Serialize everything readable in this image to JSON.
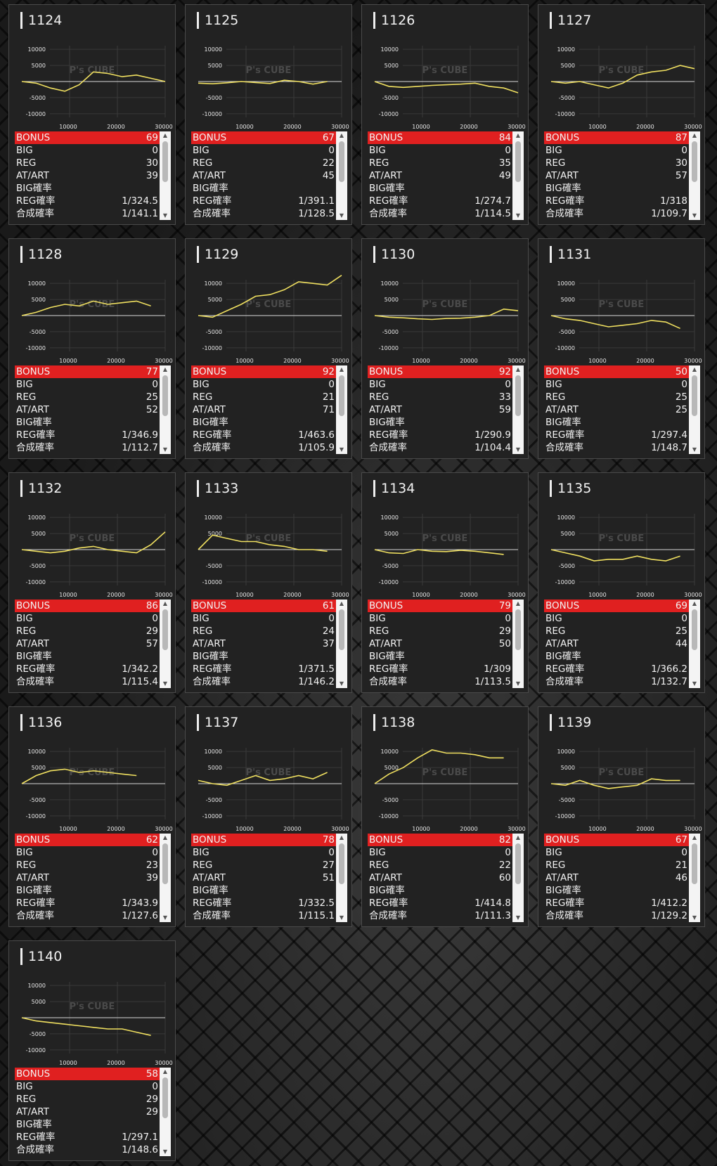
{
  "labels": {
    "bonus": "BONUS",
    "big": "BIG",
    "reg": "REG",
    "at": "AT/ART",
    "big_rate": "BIG確率",
    "reg_rate": "REG確率",
    "total_rate": "合成確率"
  },
  "watermark": "P's CUBE",
  "icons": {
    "scroll_up": "triangle-up-icon",
    "scroll_down": "triangle-down-icon"
  },
  "colors": {
    "line": "#f0e060",
    "bonus_bg": "#e02020"
  },
  "machines": [
    {
      "id": "1124",
      "bonus": "69",
      "big": "0",
      "reg": "30",
      "at": "39",
      "big_rate": "",
      "reg_rate": "1/324.5",
      "total_rate": "1/141.1"
    },
    {
      "id": "1125",
      "bonus": "67",
      "big": "0",
      "reg": "22",
      "at": "45",
      "big_rate": "",
      "reg_rate": "1/391.1",
      "total_rate": "1/128.5"
    },
    {
      "id": "1126",
      "bonus": "84",
      "big": "0",
      "reg": "35",
      "at": "49",
      "big_rate": "",
      "reg_rate": "1/274.7",
      "total_rate": "1/114.5"
    },
    {
      "id": "1127",
      "bonus": "87",
      "big": "0",
      "reg": "30",
      "at": "57",
      "big_rate": "",
      "reg_rate": "1/318",
      "total_rate": "1/109.7"
    },
    {
      "id": "1128",
      "bonus": "77",
      "big": "0",
      "reg": "25",
      "at": "52",
      "big_rate": "",
      "reg_rate": "1/346.9",
      "total_rate": "1/112.7"
    },
    {
      "id": "1129",
      "bonus": "92",
      "big": "0",
      "reg": "21",
      "at": "71",
      "big_rate": "",
      "reg_rate": "1/463.6",
      "total_rate": "1/105.9"
    },
    {
      "id": "1130",
      "bonus": "92",
      "big": "0",
      "reg": "33",
      "at": "59",
      "big_rate": "",
      "reg_rate": "1/290.9",
      "total_rate": "1/104.4"
    },
    {
      "id": "1131",
      "bonus": "50",
      "big": "0",
      "reg": "25",
      "at": "25",
      "big_rate": "",
      "reg_rate": "1/297.4",
      "total_rate": "1/148.7"
    },
    {
      "id": "1132",
      "bonus": "86",
      "big": "0",
      "reg": "29",
      "at": "57",
      "big_rate": "",
      "reg_rate": "1/342.2",
      "total_rate": "1/115.4"
    },
    {
      "id": "1133",
      "bonus": "61",
      "big": "0",
      "reg": "24",
      "at": "37",
      "big_rate": "",
      "reg_rate": "1/371.5",
      "total_rate": "1/146.2"
    },
    {
      "id": "1134",
      "bonus": "79",
      "big": "0",
      "reg": "29",
      "at": "50",
      "big_rate": "",
      "reg_rate": "1/309",
      "total_rate": "1/113.5"
    },
    {
      "id": "1135",
      "bonus": "69",
      "big": "0",
      "reg": "25",
      "at": "44",
      "big_rate": "",
      "reg_rate": "1/366.2",
      "total_rate": "1/132.7"
    },
    {
      "id": "1136",
      "bonus": "62",
      "big": "0",
      "reg": "23",
      "at": "39",
      "big_rate": "",
      "reg_rate": "1/343.9",
      "total_rate": "1/127.6"
    },
    {
      "id": "1137",
      "bonus": "78",
      "big": "0",
      "reg": "27",
      "at": "51",
      "big_rate": "",
      "reg_rate": "1/332.5",
      "total_rate": "1/115.1"
    },
    {
      "id": "1138",
      "bonus": "82",
      "big": "0",
      "reg": "22",
      "at": "60",
      "big_rate": "",
      "reg_rate": "1/414.8",
      "total_rate": "1/111.3"
    },
    {
      "id": "1139",
      "bonus": "67",
      "big": "0",
      "reg": "21",
      "at": "46",
      "big_rate": "",
      "reg_rate": "1/412.2",
      "total_rate": "1/129.2"
    },
    {
      "id": "1140",
      "bonus": "58",
      "big": "0",
      "reg": "29",
      "at": "29",
      "big_rate": "",
      "reg_rate": "1/297.1",
      "total_rate": "1/148.6"
    }
  ],
  "chart_data": [
    {
      "type": "line",
      "title": "1124",
      "x_ticks": [
        "10000",
        "20000",
        "30000"
      ],
      "y_ticks": [
        "10000",
        "5000",
        "-5000",
        "-10000"
      ],
      "xlim": [
        0,
        30000
      ],
      "ylim": [
        -12000,
        12000
      ],
      "x": [
        0,
        3000,
        6000,
        9000,
        12000,
        15000,
        18000,
        21000,
        24000,
        27000,
        30000
      ],
      "values": [
        0,
        -500,
        -2000,
        -3000,
        -1000,
        3000,
        2500,
        1500,
        2000,
        1000,
        0
      ]
    },
    {
      "type": "line",
      "title": "1125",
      "x_ticks": [
        "10000",
        "20000",
        "30000"
      ],
      "y_ticks": [
        "10000",
        "5000",
        "-5000",
        "-10000"
      ],
      "xlim": [
        0,
        30000
      ],
      "ylim": [
        -12000,
        12000
      ],
      "x": [
        0,
        3000,
        6000,
        9000,
        12000,
        15000,
        18000,
        21000,
        24000,
        27000
      ],
      "values": [
        -500,
        -700,
        -400,
        0,
        -300,
        -600,
        400,
        0,
        -800,
        0
      ]
    },
    {
      "type": "line",
      "title": "1126",
      "x_ticks": [
        "10000",
        "20000",
        "30000"
      ],
      "y_ticks": [
        "10000",
        "5000",
        "-5000",
        "-10000"
      ],
      "xlim": [
        0,
        30000
      ],
      "ylim": [
        -12000,
        12000
      ],
      "x": [
        0,
        3000,
        6000,
        9000,
        12000,
        15000,
        18000,
        21000,
        24000,
        27000,
        30000
      ],
      "values": [
        0,
        -1500,
        -1800,
        -1500,
        -1200,
        -1000,
        -800,
        -500,
        -1500,
        -2000,
        -3500
      ]
    },
    {
      "type": "line",
      "title": "1127",
      "x_ticks": [
        "10000",
        "20000",
        "30000"
      ],
      "y_ticks": [
        "10000",
        "5000",
        "-5000",
        "-10000"
      ],
      "xlim": [
        0,
        30000
      ],
      "ylim": [
        -12000,
        12000
      ],
      "x": [
        0,
        3000,
        6000,
        9000,
        12000,
        15000,
        18000,
        21000,
        24000,
        27000,
        30000
      ],
      "values": [
        0,
        -500,
        0,
        -1000,
        -2000,
        -500,
        2000,
        3000,
        3500,
        5000,
        4000
      ]
    },
    {
      "type": "line",
      "title": "1128",
      "x_ticks": [
        "10000",
        "20000",
        "30000"
      ],
      "y_ticks": [
        "10000",
        "5000",
        "-5000",
        "-10000"
      ],
      "xlim": [
        0,
        30000
      ],
      "ylim": [
        -12000,
        12000
      ],
      "x": [
        0,
        3000,
        6000,
        9000,
        12000,
        15000,
        18000,
        21000,
        24000,
        27000
      ],
      "values": [
        0,
        1000,
        2500,
        3500,
        3000,
        4500,
        3500,
        4000,
        4500,
        3000
      ]
    },
    {
      "type": "line",
      "title": "1129",
      "x_ticks": [
        "10000",
        "20000",
        "30000"
      ],
      "y_ticks": [
        "10000",
        "5000",
        "-5000",
        "-10000"
      ],
      "xlim": [
        0,
        30000
      ],
      "ylim": [
        -12000,
        12000
      ],
      "x": [
        0,
        3000,
        6000,
        9000,
        12000,
        15000,
        18000,
        21000,
        24000,
        27000,
        30000
      ],
      "values": [
        0,
        -500,
        1500,
        3500,
        6000,
        6500,
        8000,
        10500,
        10000,
        9500,
        12500
      ]
    },
    {
      "type": "line",
      "title": "1130",
      "x_ticks": [
        "10000",
        "20000",
        "30000"
      ],
      "y_ticks": [
        "10000",
        "5000",
        "-5000",
        "-10000"
      ],
      "xlim": [
        0,
        30000
      ],
      "ylim": [
        -12000,
        12000
      ],
      "x": [
        0,
        3000,
        6000,
        9000,
        12000,
        15000,
        18000,
        21000,
        24000,
        27000,
        30000
      ],
      "values": [
        0,
        -500,
        -700,
        -1000,
        -1200,
        -900,
        -800,
        -500,
        0,
        2000,
        1500
      ]
    },
    {
      "type": "line",
      "title": "1131",
      "x_ticks": [
        "10000",
        "20000",
        "30000"
      ],
      "y_ticks": [
        "10000",
        "5000",
        "-5000",
        "-10000"
      ],
      "xlim": [
        0,
        30000
      ],
      "ylim": [
        -12000,
        12000
      ],
      "x": [
        0,
        3000,
        6000,
        9000,
        12000,
        15000,
        18000,
        21000,
        24000,
        27000
      ],
      "values": [
        0,
        -1000,
        -1500,
        -2500,
        -3500,
        -3000,
        -2500,
        -1500,
        -2000,
        -4000
      ]
    },
    {
      "type": "line",
      "title": "1132",
      "x_ticks": [
        "10000",
        "20000",
        "30000"
      ],
      "y_ticks": [
        "10000",
        "5000",
        "-5000",
        "-10000"
      ],
      "xlim": [
        0,
        30000
      ],
      "ylim": [
        -12000,
        12000
      ],
      "x": [
        0,
        3000,
        6000,
        9000,
        12000,
        15000,
        18000,
        21000,
        24000,
        27000,
        30000
      ],
      "values": [
        0,
        -500,
        -1000,
        -500,
        500,
        1000,
        0,
        -500,
        -1000,
        1500,
        5500
      ]
    },
    {
      "type": "line",
      "title": "1133",
      "x_ticks": [
        "10000",
        "20000",
        "30000"
      ],
      "y_ticks": [
        "10000",
        "5000",
        "-5000",
        "-10000"
      ],
      "xlim": [
        0,
        30000
      ],
      "ylim": [
        -12000,
        12000
      ],
      "x": [
        0,
        3000,
        6000,
        9000,
        12000,
        15000,
        18000,
        21000,
        24000,
        27000
      ],
      "values": [
        0,
        4500,
        3500,
        2500,
        2500,
        1500,
        1000,
        0,
        0,
        -500
      ]
    },
    {
      "type": "line",
      "title": "1134",
      "x_ticks": [
        "10000",
        "20000",
        "30000"
      ],
      "y_ticks": [
        "10000",
        "5000",
        "-5000",
        "-10000"
      ],
      "xlim": [
        0,
        30000
      ],
      "ylim": [
        -12000,
        12000
      ],
      "x": [
        0,
        3000,
        6000,
        9000,
        12000,
        15000,
        18000,
        21000,
        24000,
        27000
      ],
      "values": [
        0,
        -1000,
        -1200,
        0,
        -500,
        -600,
        -200,
        -500,
        -1000,
        -1500
      ]
    },
    {
      "type": "line",
      "title": "1135",
      "x_ticks": [
        "10000",
        "20000",
        "30000"
      ],
      "y_ticks": [
        "10000",
        "5000",
        "-5000",
        "-10000"
      ],
      "xlim": [
        0,
        30000
      ],
      "ylim": [
        -12000,
        12000
      ],
      "x": [
        0,
        3000,
        6000,
        9000,
        12000,
        15000,
        18000,
        21000,
        24000,
        27000
      ],
      "values": [
        0,
        -1000,
        -2000,
        -3500,
        -3000,
        -3000,
        -2000,
        -3000,
        -3500,
        -2000
      ]
    },
    {
      "type": "line",
      "title": "1136",
      "x_ticks": [
        "10000",
        "20000",
        "30000"
      ],
      "y_ticks": [
        "10000",
        "5000",
        "-5000",
        "-10000"
      ],
      "xlim": [
        0,
        30000
      ],
      "ylim": [
        -12000,
        12000
      ],
      "x": [
        0,
        3000,
        6000,
        9000,
        12000,
        15000,
        18000,
        21000,
        24000
      ],
      "values": [
        0,
        2500,
        4000,
        4500,
        3500,
        4000,
        3500,
        3000,
        2500
      ]
    },
    {
      "type": "line",
      "title": "1137",
      "x_ticks": [
        "10000",
        "20000",
        "30000"
      ],
      "y_ticks": [
        "10000",
        "5000",
        "-5000",
        "-10000"
      ],
      "xlim": [
        0,
        30000
      ],
      "ylim": [
        -12000,
        12000
      ],
      "x": [
        0,
        3000,
        6000,
        9000,
        12000,
        15000,
        18000,
        21000,
        24000,
        27000
      ],
      "values": [
        1000,
        0,
        -500,
        1000,
        2500,
        1000,
        1500,
        2500,
        1500,
        3500
      ]
    },
    {
      "type": "line",
      "title": "1138",
      "x_ticks": [
        "10000",
        "20000",
        "30000"
      ],
      "y_ticks": [
        "10000",
        "5000",
        "-5000",
        "-10000"
      ],
      "xlim": [
        0,
        30000
      ],
      "ylim": [
        -12000,
        12000
      ],
      "x": [
        0,
        3000,
        6000,
        9000,
        12000,
        15000,
        18000,
        21000,
        24000,
        27000
      ],
      "values": [
        0,
        3000,
        5000,
        8000,
        10500,
        9500,
        9500,
        9000,
        8000,
        8000
      ]
    },
    {
      "type": "line",
      "title": "1139",
      "x_ticks": [
        "10000",
        "20000",
        "30000"
      ],
      "y_ticks": [
        "10000",
        "5000",
        "-5000",
        "-10000"
      ],
      "xlim": [
        0,
        30000
      ],
      "ylim": [
        -12000,
        12000
      ],
      "x": [
        0,
        3000,
        6000,
        9000,
        12000,
        15000,
        18000,
        21000,
        24000,
        27000
      ],
      "values": [
        0,
        -500,
        1000,
        -500,
        -1500,
        -1000,
        -500,
        1500,
        1000,
        1000
      ]
    },
    {
      "type": "line",
      "title": "1140",
      "x_ticks": [
        "10000",
        "20000",
        "30000"
      ],
      "y_ticks": [
        "10000",
        "5000",
        "-5000",
        "-10000"
      ],
      "xlim": [
        0,
        30000
      ],
      "ylim": [
        -12000,
        12000
      ],
      "x": [
        0,
        3000,
        6000,
        9000,
        12000,
        15000,
        18000,
        21000,
        24000,
        27000
      ],
      "values": [
        0,
        -1000,
        -1500,
        -2000,
        -2500,
        -3000,
        -3500,
        -3500,
        -4500,
        -5500
      ]
    }
  ]
}
